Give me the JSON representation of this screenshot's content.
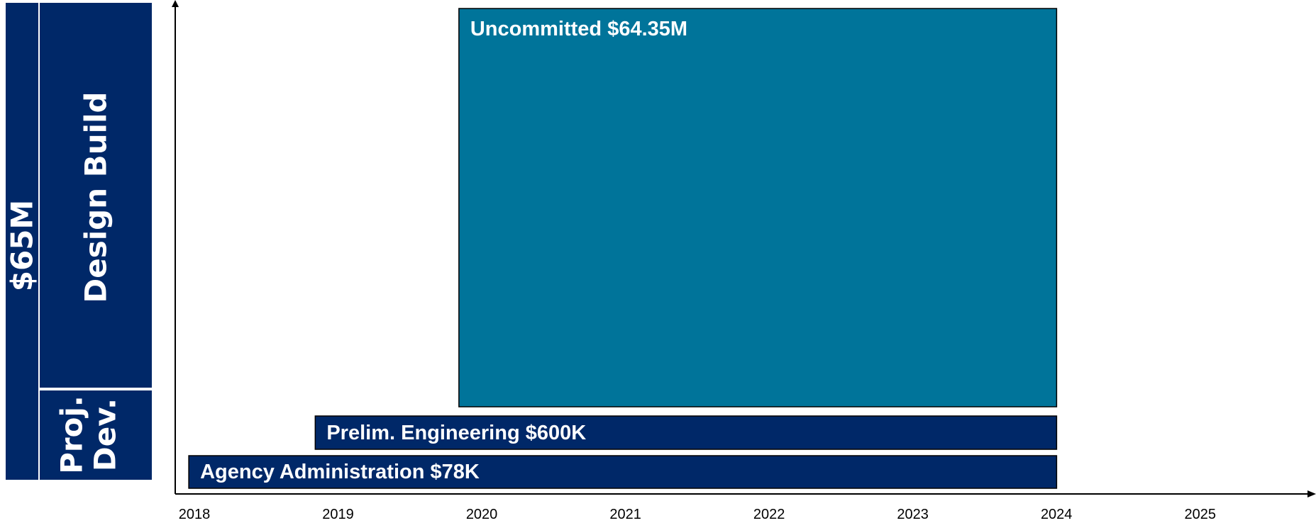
{
  "side_panel": {
    "total_label": "$65M",
    "phase_design_build": "Design Build",
    "phase_proj_dev_line1": "Proj.",
    "phase_proj_dev_line2": "Dev.",
    "color": "#002868"
  },
  "chart_data": {
    "type": "bar",
    "orientation": "horizontal-timeline",
    "xlabel": "",
    "ylabel": "",
    "x_ticks": [
      "2018",
      "2019",
      "2020",
      "2021",
      "2022",
      "2023",
      "2024",
      "2025"
    ],
    "xlim": [
      2018,
      2025.9
    ],
    "bars": [
      {
        "label": "Uncommitted $64.35M",
        "start": 2019.92,
        "end": 2024.08,
        "value_millions": 64.35,
        "color": "#00749A"
      },
      {
        "label": "Prelim. Engineering $600K",
        "start": 2018.92,
        "end": 2024.08,
        "value_millions": 0.6,
        "color": "#002868"
      },
      {
        "label": "Agency Administration $78K",
        "start": 2018.04,
        "end": 2024.08,
        "value_millions": 0.078,
        "color": "#002868"
      }
    ]
  }
}
